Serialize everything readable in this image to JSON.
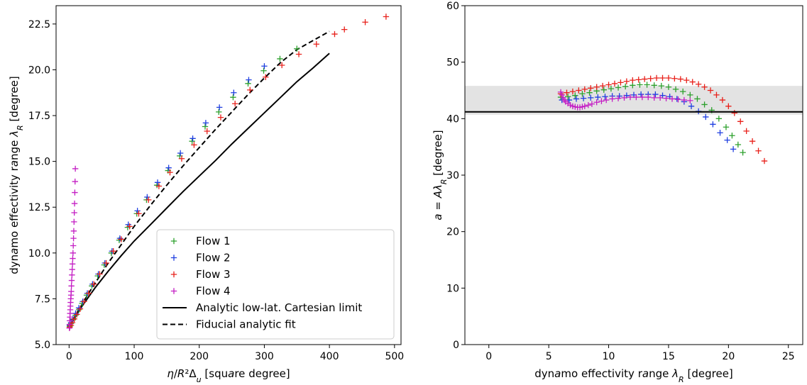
{
  "chart_data": [
    {
      "type": "scatter",
      "xlabel": "η/R²Δ_u [square degree]",
      "ylabel": "dynamo effectivity range λ_R [degree]",
      "xlim": [
        -20,
        510
      ],
      "ylim": [
        5.0,
        23.5
      ],
      "xticks": [
        {
          "value": 0,
          "label": "0"
        },
        {
          "value": 100,
          "label": "100"
        },
        {
          "value": 200,
          "label": "200"
        },
        {
          "value": 300,
          "label": "300"
        },
        {
          "value": 400,
          "label": "400"
        },
        {
          "value": 500,
          "label": "500"
        }
      ],
      "yticks": [
        {
          "value": 5.0,
          "label": "5.0"
        },
        {
          "value": 7.5,
          "label": "7.5"
        },
        {
          "value": 10.0,
          "label": "10.0"
        },
        {
          "value": 12.5,
          "label": "12.5"
        },
        {
          "value": 15.0,
          "label": "15.0"
        },
        {
          "value": 17.5,
          "label": "17.5"
        },
        {
          "value": 20.0,
          "label": "20.0"
        },
        {
          "value": 22.5,
          "label": "22.5"
        }
      ],
      "legend_position": "lower-right",
      "series": [
        {
          "name": "Flow 1",
          "color": "#2ca02c",
          "marker": "+",
          "x": [
            1,
            3,
            6,
            10,
            15,
            20,
            27,
            35,
            44,
            54,
            65,
            77,
            90,
            104,
            119,
            135,
            152,
            170,
            189,
            209,
            230,
            252,
            275,
            299,
            324,
            350
          ],
          "y": [
            6.0,
            6.15,
            6.35,
            6.6,
            6.9,
            7.25,
            7.7,
            8.2,
            8.75,
            9.35,
            10.0,
            10.7,
            11.4,
            12.15,
            12.9,
            13.7,
            14.5,
            15.3,
            16.1,
            16.9,
            17.7,
            18.5,
            19.25,
            19.95,
            20.6,
            21.15
          ]
        },
        {
          "name": "Flow 2",
          "color": "#1f3fe0",
          "marker": "+",
          "x": [
            1,
            3,
            6,
            10,
            15,
            21,
            28,
            36,
            45,
            55,
            66,
            78,
            91,
            105,
            120,
            136,
            153,
            171,
            190,
            210,
            231,
            253,
            276,
            300
          ],
          "y": [
            6.05,
            6.2,
            6.4,
            6.7,
            7.0,
            7.35,
            7.8,
            8.3,
            8.85,
            9.45,
            10.1,
            10.8,
            11.55,
            12.3,
            13.05,
            13.85,
            14.65,
            15.45,
            16.25,
            17.1,
            17.95,
            18.75,
            19.45,
            20.2
          ]
        },
        {
          "name": "Flow 3",
          "color": "#e8201a",
          "marker": "+",
          "x": [
            1,
            3,
            5,
            8,
            12,
            17,
            23,
            30,
            38,
            47,
            57,
            68,
            80,
            93,
            107,
            122,
            138,
            155,
            173,
            192,
            212,
            233,
            255,
            278,
            302,
            327,
            353,
            380,
            408,
            423,
            455,
            487
          ],
          "y": [
            5.95,
            6.05,
            6.2,
            6.4,
            6.65,
            6.95,
            7.35,
            7.8,
            8.3,
            8.85,
            9.45,
            10.1,
            10.75,
            11.45,
            12.15,
            12.9,
            13.65,
            14.4,
            15.15,
            15.9,
            16.65,
            17.4,
            18.15,
            18.9,
            19.6,
            20.25,
            20.85,
            21.4,
            21.95,
            22.2,
            22.6,
            22.9
          ]
        },
        {
          "name": "Flow 4",
          "color": "#c41ec4",
          "marker": "+",
          "x": [
            0.5,
            0.8,
            1.0,
            1.3,
            1.5,
            1.8,
            2.0,
            2.3,
            2.6,
            3.0,
            3.3,
            3.6,
            4.0,
            4.4,
            4.8,
            5.2,
            5.6,
            6.0,
            6.4,
            6.8,
            7.2,
            7.6,
            8.0,
            8.4,
            8.8,
            9.2,
            9.6
          ],
          "y": [
            5.9,
            6.1,
            6.3,
            6.5,
            6.7,
            6.9,
            7.1,
            7.3,
            7.5,
            7.7,
            7.9,
            8.2,
            8.5,
            8.8,
            9.1,
            9.4,
            9.7,
            10.0,
            10.4,
            10.8,
            11.2,
            11.7,
            12.2,
            12.7,
            13.3,
            13.9,
            14.6
          ]
        }
      ],
      "lines": [
        {
          "name": "Analytic low-lat. Cartesian limit",
          "color": "#000000",
          "style": "solid",
          "x": [
            0,
            10,
            20,
            30,
            40,
            60,
            80,
            100,
            125,
            150,
            175,
            200,
            225,
            250,
            275,
            300,
            325,
            350,
            375,
            400
          ],
          "y": [
            5.95,
            6.55,
            7.1,
            7.6,
            8.1,
            9.0,
            9.85,
            10.65,
            11.55,
            12.45,
            13.35,
            14.2,
            15.05,
            15.95,
            16.8,
            17.65,
            18.5,
            19.35,
            20.1,
            20.9
          ]
        },
        {
          "name": "Fiducial analytic fit",
          "color": "#000000",
          "style": "dashed",
          "x": [
            0,
            10,
            20,
            30,
            40,
            60,
            80,
            100,
            125,
            150,
            175,
            200,
            225,
            250,
            275,
            300,
            325,
            350,
            375,
            400
          ],
          "y": [
            5.95,
            6.6,
            7.2,
            7.8,
            8.35,
            9.45,
            10.45,
            11.45,
            12.6,
            13.7,
            14.75,
            15.75,
            16.75,
            17.7,
            18.65,
            19.55,
            20.4,
            21.1,
            21.6,
            22.1
          ]
        }
      ]
    },
    {
      "type": "scatter",
      "xlabel": "dynamo effectivity range λ_R [degree]",
      "ylabel": "a = Aλ_R [degree]",
      "xlim": [
        -2,
        26.2
      ],
      "ylim": [
        0,
        60
      ],
      "xticks": [
        {
          "value": 0,
          "label": "0"
        },
        {
          "value": 5,
          "label": "5"
        },
        {
          "value": 10,
          "label": "10"
        },
        {
          "value": 15,
          "label": "15"
        },
        {
          "value": 20,
          "label": "20"
        },
        {
          "value": 25,
          "label": "25"
        }
      ],
      "yticks": [
        {
          "value": 0,
          "label": "0"
        },
        {
          "value": 10,
          "label": "10"
        },
        {
          "value": 20,
          "label": "20"
        },
        {
          "value": 30,
          "label": "30"
        },
        {
          "value": 40,
          "label": "40"
        },
        {
          "value": 50,
          "label": "50"
        },
        {
          "value": 60,
          "label": "60"
        }
      ],
      "band": {
        "y_low": 40.7,
        "y_high": 45.8,
        "color": "#e3e3e3"
      },
      "hline": {
        "y": 41.2,
        "color": "#000000"
      },
      "series": [
        {
          "name": "Flow 1",
          "color": "#2ca02c",
          "marker": "+",
          "x": [
            6.0,
            6.6,
            7.2,
            7.8,
            8.4,
            9.0,
            9.6,
            10.2,
            10.8,
            11.4,
            12.0,
            12.6,
            13.2,
            13.8,
            14.4,
            15.0,
            15.6,
            16.2,
            16.8,
            17.4,
            18.0,
            18.6,
            19.2,
            19.8,
            20.3,
            20.8,
            21.2
          ],
          "y": [
            43.8,
            43.9,
            44.1,
            44.4,
            44.6,
            44.9,
            45.1,
            45.3,
            45.5,
            45.7,
            45.9,
            46.0,
            46.0,
            45.9,
            45.8,
            45.6,
            45.2,
            44.8,
            44.2,
            43.5,
            42.5,
            41.5,
            40.0,
            38.5,
            37.0,
            35.4,
            34.0
          ]
        },
        {
          "name": "Flow 2",
          "color": "#1f3fe0",
          "marker": "+",
          "x": [
            6.1,
            6.7,
            7.3,
            7.9,
            8.5,
            9.1,
            9.7,
            10.3,
            10.9,
            11.5,
            12.1,
            12.7,
            13.3,
            13.9,
            14.5,
            15.1,
            15.7,
            16.3,
            16.9,
            17.5,
            18.1,
            18.7,
            19.3,
            19.9,
            20.4
          ],
          "y": [
            43.3,
            43.3,
            43.5,
            43.6,
            43.7,
            43.8,
            43.9,
            44.0,
            44.0,
            44.1,
            44.2,
            44.3,
            44.3,
            44.3,
            44.1,
            43.9,
            43.5,
            43.0,
            42.2,
            41.3,
            40.3,
            39.0,
            37.5,
            36.2,
            34.6
          ]
        },
        {
          "name": "Flow 3",
          "color": "#e8201a",
          "marker": "+",
          "x": [
            6.0,
            6.5,
            7.0,
            7.5,
            8.0,
            8.5,
            9.0,
            9.5,
            10.0,
            10.5,
            11.0,
            11.5,
            12.0,
            12.5,
            13.0,
            13.5,
            14.0,
            14.5,
            15.0,
            15.5,
            16.0,
            16.5,
            17.0,
            17.5,
            18.0,
            18.5,
            19.0,
            19.5,
            20.0,
            20.5,
            21.0,
            21.5,
            22.0,
            22.5,
            23.0
          ],
          "y": [
            44.4,
            44.6,
            44.8,
            45.0,
            45.2,
            45.4,
            45.6,
            45.8,
            46.0,
            46.2,
            46.4,
            46.6,
            46.8,
            46.9,
            47.0,
            47.1,
            47.2,
            47.2,
            47.2,
            47.1,
            47.0,
            46.8,
            46.5,
            46.1,
            45.6,
            45.0,
            44.2,
            43.3,
            42.2,
            41.0,
            39.5,
            37.8,
            36.0,
            34.3,
            32.5
          ]
        },
        {
          "name": "Flow 4",
          "color": "#c41ec4",
          "marker": "+",
          "x": [
            6.0,
            6.1,
            6.2,
            6.3,
            6.4,
            6.6,
            6.8,
            7.0,
            7.2,
            7.4,
            7.6,
            7.8,
            8.0,
            8.3,
            8.6,
            9.0,
            9.4,
            9.8,
            10.3,
            10.8,
            11.3,
            11.8,
            12.3,
            12.8,
            13.3,
            13.8,
            14.3,
            14.8,
            15.3,
            15.8,
            16.3,
            16.8
          ],
          "y": [
            44.7,
            44.2,
            43.7,
            43.3,
            43.0,
            42.7,
            42.4,
            42.2,
            42.1,
            42.0,
            42.0,
            42.1,
            42.2,
            42.4,
            42.6,
            42.9,
            43.1,
            43.3,
            43.5,
            43.6,
            43.7,
            43.8,
            43.8,
            43.8,
            43.8,
            43.7,
            43.7,
            43.6,
            43.5,
            43.4,
            43.3,
            43.2
          ]
        }
      ]
    }
  ]
}
